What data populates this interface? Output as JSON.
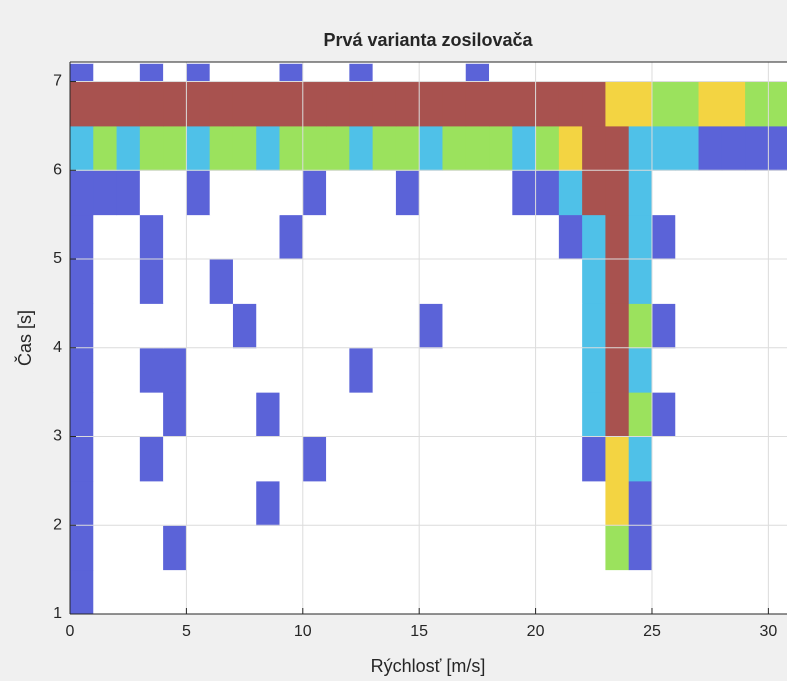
{
  "chart_data": {
    "type": "heatmap",
    "title": "Prvá varianta zosilovača",
    "x_label": "Rýchlosť [m/s]",
    "y_label": "Čas [s]",
    "xlim": [
      0,
      30.8
    ],
    "xticks": [
      0,
      5,
      10,
      15,
      20,
      25,
      30
    ],
    "ylim": [
      1,
      7.22
    ],
    "yticks": [
      1,
      2,
      3,
      4,
      5,
      6,
      7
    ],
    "grid": true,
    "colormap": [
      "#ffffff",
      "#5b63d8",
      "#4fc1e8",
      "#9be25d",
      "#f3d442",
      "#a8524f"
    ],
    "x_edges": [
      0,
      1,
      2,
      3,
      4,
      5,
      6,
      7,
      8,
      9,
      10,
      11,
      12,
      13,
      14,
      15,
      16,
      17,
      18,
      19,
      20,
      21,
      22,
      23,
      24,
      25,
      26,
      27,
      28,
      29,
      30,
      31
    ],
    "y_edges": [
      1,
      1.5,
      2,
      2.5,
      3,
      3.5,
      4,
      4.5,
      5,
      5.5,
      6,
      6.5,
      7,
      7.2
    ],
    "z": [
      [
        1,
        0,
        0,
        0,
        0,
        0,
        0,
        0,
        0,
        0,
        0,
        0,
        0,
        0,
        0,
        0,
        0,
        0,
        0,
        0,
        0,
        0,
        0,
        0,
        0,
        0,
        0,
        0,
        0,
        0,
        0
      ],
      [
        1,
        0,
        0,
        0,
        1,
        0,
        0,
        0,
        0,
        0,
        0,
        0,
        0,
        0,
        0,
        0,
        0,
        0,
        0,
        0,
        0,
        0,
        0,
        3,
        1,
        0,
        0,
        0,
        0,
        0,
        0
      ],
      [
        1,
        0,
        0,
        0,
        0,
        0,
        0,
        0,
        1,
        0,
        0,
        0,
        0,
        0,
        0,
        0,
        0,
        0,
        0,
        0,
        0,
        0,
        0,
        4,
        1,
        0,
        0,
        0,
        0,
        0,
        0
      ],
      [
        1,
        0,
        0,
        1,
        0,
        0,
        0,
        0,
        0,
        0,
        1,
        0,
        0,
        0,
        0,
        0,
        0,
        0,
        0,
        0,
        0,
        0,
        1,
        4,
        2,
        0,
        0,
        0,
        0,
        0,
        0
      ],
      [
        1,
        0,
        0,
        0,
        1,
        0,
        0,
        0,
        1,
        0,
        0,
        0,
        0,
        0,
        0,
        0,
        0,
        0,
        0,
        0,
        0,
        0,
        2,
        5,
        3,
        1,
        0,
        0,
        0,
        0,
        0
      ],
      [
        1,
        0,
        0,
        1,
        1,
        0,
        0,
        0,
        0,
        0,
        0,
        0,
        1,
        0,
        0,
        0,
        0,
        0,
        0,
        0,
        0,
        0,
        2,
        5,
        2,
        0,
        0,
        0,
        0,
        0,
        0
      ],
      [
        1,
        0,
        0,
        0,
        0,
        0,
        0,
        1,
        0,
        0,
        0,
        0,
        0,
        0,
        0,
        1,
        0,
        0,
        0,
        0,
        0,
        0,
        2,
        5,
        3,
        1,
        0,
        0,
        0,
        0,
        0
      ],
      [
        1,
        0,
        0,
        1,
        0,
        0,
        1,
        0,
        0,
        0,
        0,
        0,
        0,
        0,
        0,
        0,
        0,
        0,
        0,
        0,
        0,
        0,
        2,
        5,
        2,
        0,
        0,
        0,
        0,
        0,
        0
      ],
      [
        1,
        0,
        0,
        1,
        0,
        0,
        0,
        0,
        0,
        1,
        0,
        0,
        0,
        0,
        0,
        0,
        0,
        0,
        0,
        0,
        0,
        1,
        2,
        5,
        2,
        1,
        0,
        0,
        0,
        0,
        0
      ],
      [
        1,
        1,
        1,
        0,
        0,
        1,
        0,
        0,
        0,
        0,
        1,
        0,
        0,
        0,
        1,
        0,
        0,
        0,
        0,
        1,
        1,
        2,
        5,
        5,
        2,
        0,
        0,
        0,
        0,
        0,
        0
      ],
      [
        2,
        3,
        2,
        3,
        3,
        2,
        3,
        3,
        2,
        3,
        3,
        3,
        2,
        3,
        3,
        2,
        3,
        3,
        3,
        2,
        3,
        4,
        5,
        5,
        2,
        2,
        2,
        1,
        1,
        1,
        1
      ],
      [
        5,
        5,
        5,
        5,
        5,
        5,
        5,
        5,
        5,
        5,
        5,
        5,
        5,
        5,
        5,
        5,
        5,
        5,
        5,
        5,
        5,
        5,
        5,
        4,
        4,
        3,
        3,
        4,
        4,
        3,
        3
      ],
      [
        1,
        0,
        0,
        1,
        0,
        1,
        0,
        0,
        0,
        1,
        0,
        0,
        1,
        0,
        0,
        0,
        0,
        1,
        0,
        0,
        0,
        0,
        0,
        0,
        0,
        0,
        0,
        0,
        0,
        0,
        0
      ]
    ]
  }
}
